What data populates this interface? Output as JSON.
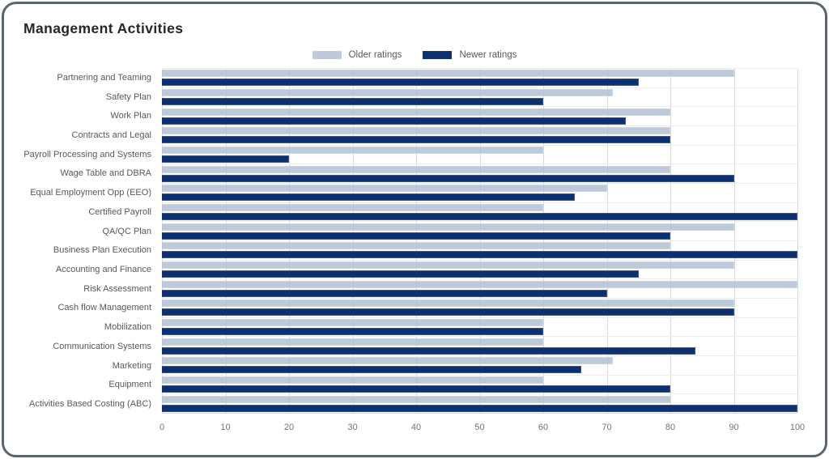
{
  "card": {
    "title": "Management Activities"
  },
  "legend": {
    "items": [
      {
        "label": "Older ratings",
        "color": "#bec9d9"
      },
      {
        "label": "Newer ratings",
        "color": "#0d3170"
      }
    ]
  },
  "colors": {
    "older_bar": "#bec9d9",
    "newer_bar": "#0d3170",
    "gridline": "#d9d9d9",
    "card_border": "#5a6571",
    "label_text": "#595959",
    "tick_text": "#757575"
  },
  "chart_data": {
    "type": "bar",
    "orientation": "horizontal",
    "title": "Management Activities",
    "categories": [
      "Partnering and Teaming",
      "Safety Plan",
      "Work Plan",
      "Contracts and Legal",
      "Payroll Processing and Systems",
      "Wage Table and DBRA",
      "Equal Employment Opp (EEO)",
      "Certified Payroll",
      "QA/QC Plan",
      "Business Plan Execution",
      "Accounting and Finance",
      "Risk Assessment",
      "Cash flow Management",
      "Mobilization",
      "Communication Systems",
      "Marketing",
      "Equipment",
      "Activities Based Costing (ABC)"
    ],
    "series": [
      {
        "name": "Older ratings",
        "color": "#bec9d9",
        "values": [
          90,
          71,
          80,
          80,
          60,
          80,
          70,
          60,
          90,
          80,
          90,
          100,
          90,
          60,
          60,
          71,
          60,
          80
        ]
      },
      {
        "name": "Newer ratings",
        "color": "#0d3170",
        "values": [
          75,
          60,
          73,
          80,
          20,
          90,
          65,
          100,
          80,
          100,
          75,
          70,
          90,
          60,
          84,
          66,
          80,
          100
        ]
      }
    ],
    "xlabel": "",
    "ylabel": "",
    "xlim": [
      0,
      100
    ],
    "x_ticks": [
      0,
      10,
      20,
      30,
      40,
      50,
      60,
      70,
      80,
      90,
      100
    ],
    "grid": "vertical",
    "legend_position": "top"
  }
}
